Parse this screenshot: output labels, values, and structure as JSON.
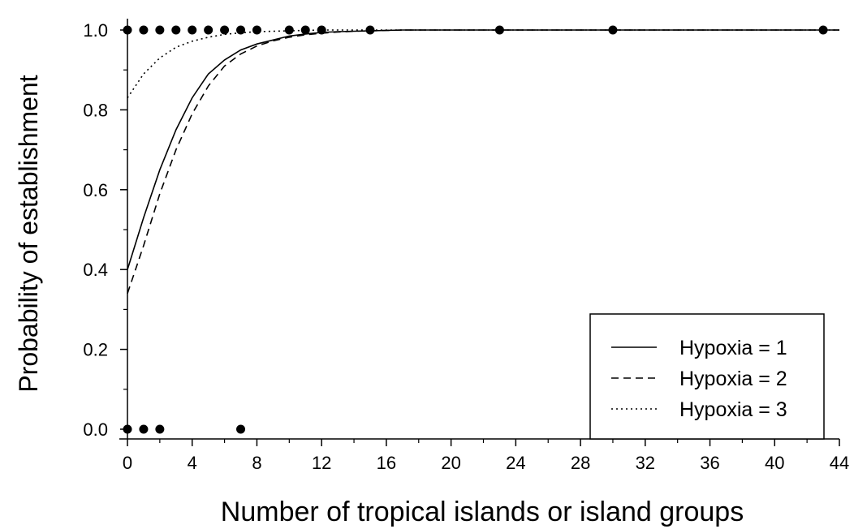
{
  "chart_data": {
    "type": "scatter",
    "title": "",
    "xlabel": "Number of tropical islands or island groups",
    "ylabel": "Probability of establishment",
    "xlim": [
      0,
      44
    ],
    "ylim": [
      0,
      1
    ],
    "x_ticks": [
      "0",
      "4",
      "8",
      "12",
      "16",
      "20",
      "24",
      "28",
      "32",
      "36",
      "40",
      "44"
    ],
    "y_ticks": [
      "0.0",
      "0.2",
      "0.4",
      "0.6",
      "0.8",
      "1.0"
    ],
    "grid": false,
    "legend_position": "bottom-right",
    "points": [
      {
        "x": 0,
        "y": 1
      },
      {
        "x": 1,
        "y": 1
      },
      {
        "x": 2,
        "y": 1
      },
      {
        "x": 3,
        "y": 1
      },
      {
        "x": 4,
        "y": 1
      },
      {
        "x": 5,
        "y": 1
      },
      {
        "x": 6,
        "y": 1
      },
      {
        "x": 7,
        "y": 1
      },
      {
        "x": 8,
        "y": 1
      },
      {
        "x": 10,
        "y": 1
      },
      {
        "x": 11,
        "y": 1
      },
      {
        "x": 12,
        "y": 1
      },
      {
        "x": 15,
        "y": 1
      },
      {
        "x": 23,
        "y": 1
      },
      {
        "x": 30,
        "y": 1
      },
      {
        "x": 43,
        "y": 1
      },
      {
        "x": 0,
        "y": 0
      },
      {
        "x": 1,
        "y": 0
      },
      {
        "x": 2,
        "y": 0
      },
      {
        "x": 7,
        "y": 0
      }
    ],
    "series": [
      {
        "name": "Hypoxia = 1",
        "line_style": "solid",
        "x": [
          0,
          1,
          2,
          3,
          4,
          5,
          6,
          7,
          8,
          9,
          10,
          11,
          12,
          13,
          14,
          15,
          16,
          17,
          18,
          20,
          24,
          28,
          32,
          36,
          40,
          44
        ],
        "values": [
          0.4,
          0.53,
          0.65,
          0.75,
          0.83,
          0.89,
          0.925,
          0.95,
          0.965,
          0.975,
          0.985,
          0.99,
          0.994,
          0.996,
          0.997,
          0.998,
          0.999,
          1.0,
          1.0,
          1.0,
          1.0,
          1.0,
          1.0,
          1.0,
          1.0,
          1.0
        ]
      },
      {
        "name": "Hypoxia = 2",
        "line_style": "dashed",
        "x": [
          0,
          1,
          2,
          3,
          4,
          5,
          6,
          7,
          8,
          9,
          10,
          11,
          12,
          13,
          14,
          15,
          16,
          17,
          18,
          20,
          24,
          28,
          32,
          36,
          40,
          44
        ],
        "values": [
          0.34,
          0.46,
          0.59,
          0.7,
          0.79,
          0.86,
          0.91,
          0.94,
          0.96,
          0.973,
          0.982,
          0.988,
          0.992,
          0.995,
          0.997,
          0.998,
          0.999,
          1.0,
          1.0,
          1.0,
          1.0,
          1.0,
          1.0,
          1.0,
          1.0,
          1.0
        ]
      },
      {
        "name": "Hypoxia = 3",
        "line_style": "dotted",
        "x": [
          0,
          1,
          2,
          3,
          4,
          5,
          6,
          7,
          8,
          9,
          10,
          11,
          12,
          14,
          16,
          20,
          24,
          28,
          32,
          36,
          40,
          44
        ],
        "values": [
          0.83,
          0.89,
          0.93,
          0.957,
          0.972,
          0.982,
          0.989,
          0.993,
          0.996,
          0.997,
          0.998,
          0.999,
          1.0,
          1.0,
          1.0,
          1.0,
          1.0,
          1.0,
          1.0,
          1.0,
          1.0,
          1.0
        ]
      }
    ]
  }
}
